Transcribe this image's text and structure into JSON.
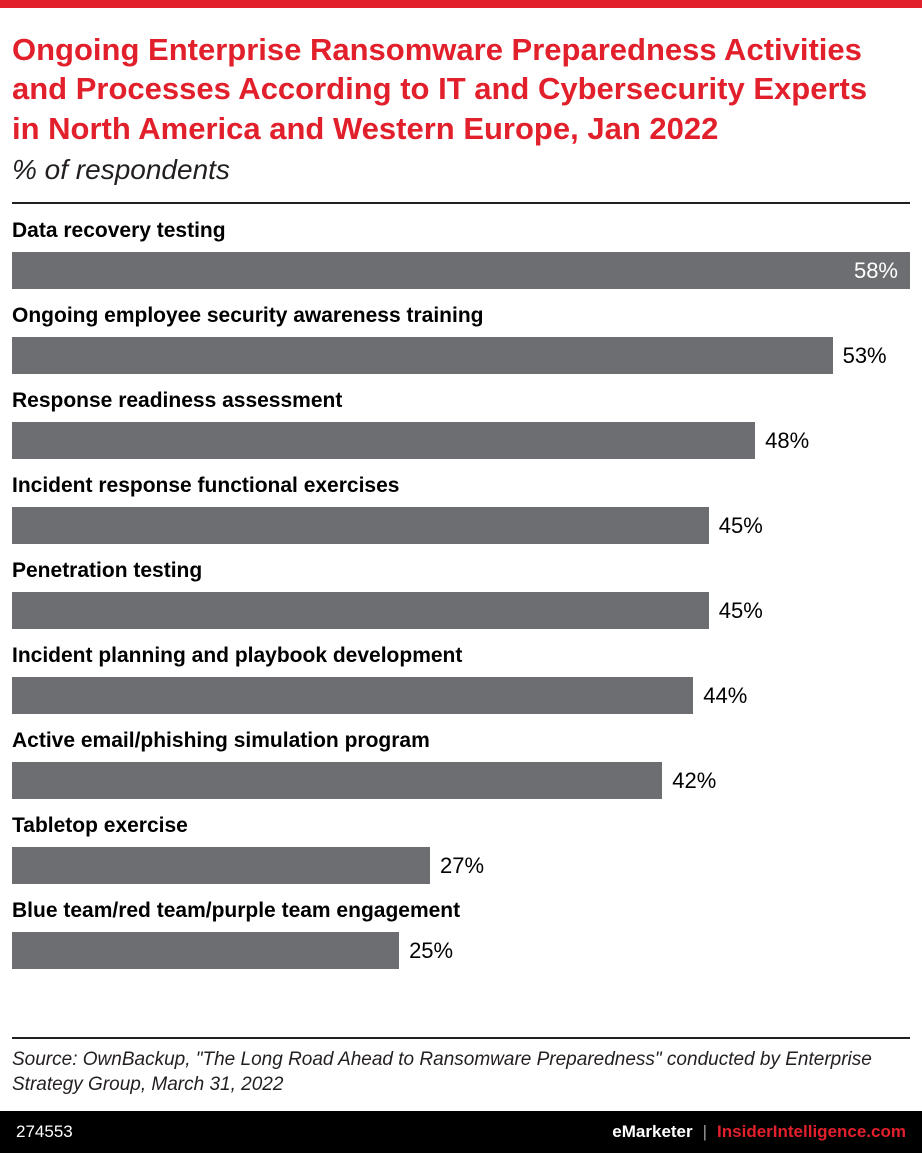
{
  "colors": {
    "accent_red": "#e2202c",
    "bar_gray": "#6d6e71",
    "footer_black": "#000000",
    "text_black": "#231f20"
  },
  "header": {
    "title": "Ongoing Enterprise Ransomware Preparedness Activities and Processes According to IT and Cybersecurity Experts in North America and Western Europe, Jan 2022",
    "subtitle": "% of respondents"
  },
  "chart_data": {
    "type": "bar",
    "orientation": "horizontal",
    "title": "Ongoing Enterprise Ransomware Preparedness Activities and Processes According to IT and Cybersecurity Experts in North America and Western Europe, Jan 2022",
    "subtitle": "% of respondents",
    "categories": [
      "Data recovery testing",
      "Ongoing employee security awareness training",
      "Response readiness assessment",
      "Incident response functional exercises",
      "Penetration testing",
      "Incident planning and playbook development",
      "Active email/phishing simulation program",
      "Tabletop exercise",
      "Blue team/red team/purple team engagement"
    ],
    "values": [
      58,
      53,
      48,
      45,
      45,
      44,
      42,
      27,
      25
    ],
    "value_suffix": "%",
    "xlabel": "",
    "ylabel": "",
    "xlim": [
      0,
      58
    ],
    "grid": false,
    "legend": false,
    "bar_color": "#6d6e71"
  },
  "source": {
    "text": "Source: OwnBackup, \"The Long Road Ahead to Ransomware Preparedness\" conducted by Enterprise Strategy Group, March 31, 2022"
  },
  "footer": {
    "id": "274553",
    "brand": "eMarketer",
    "divider": "|",
    "site": "InsiderIntelligence.com"
  }
}
